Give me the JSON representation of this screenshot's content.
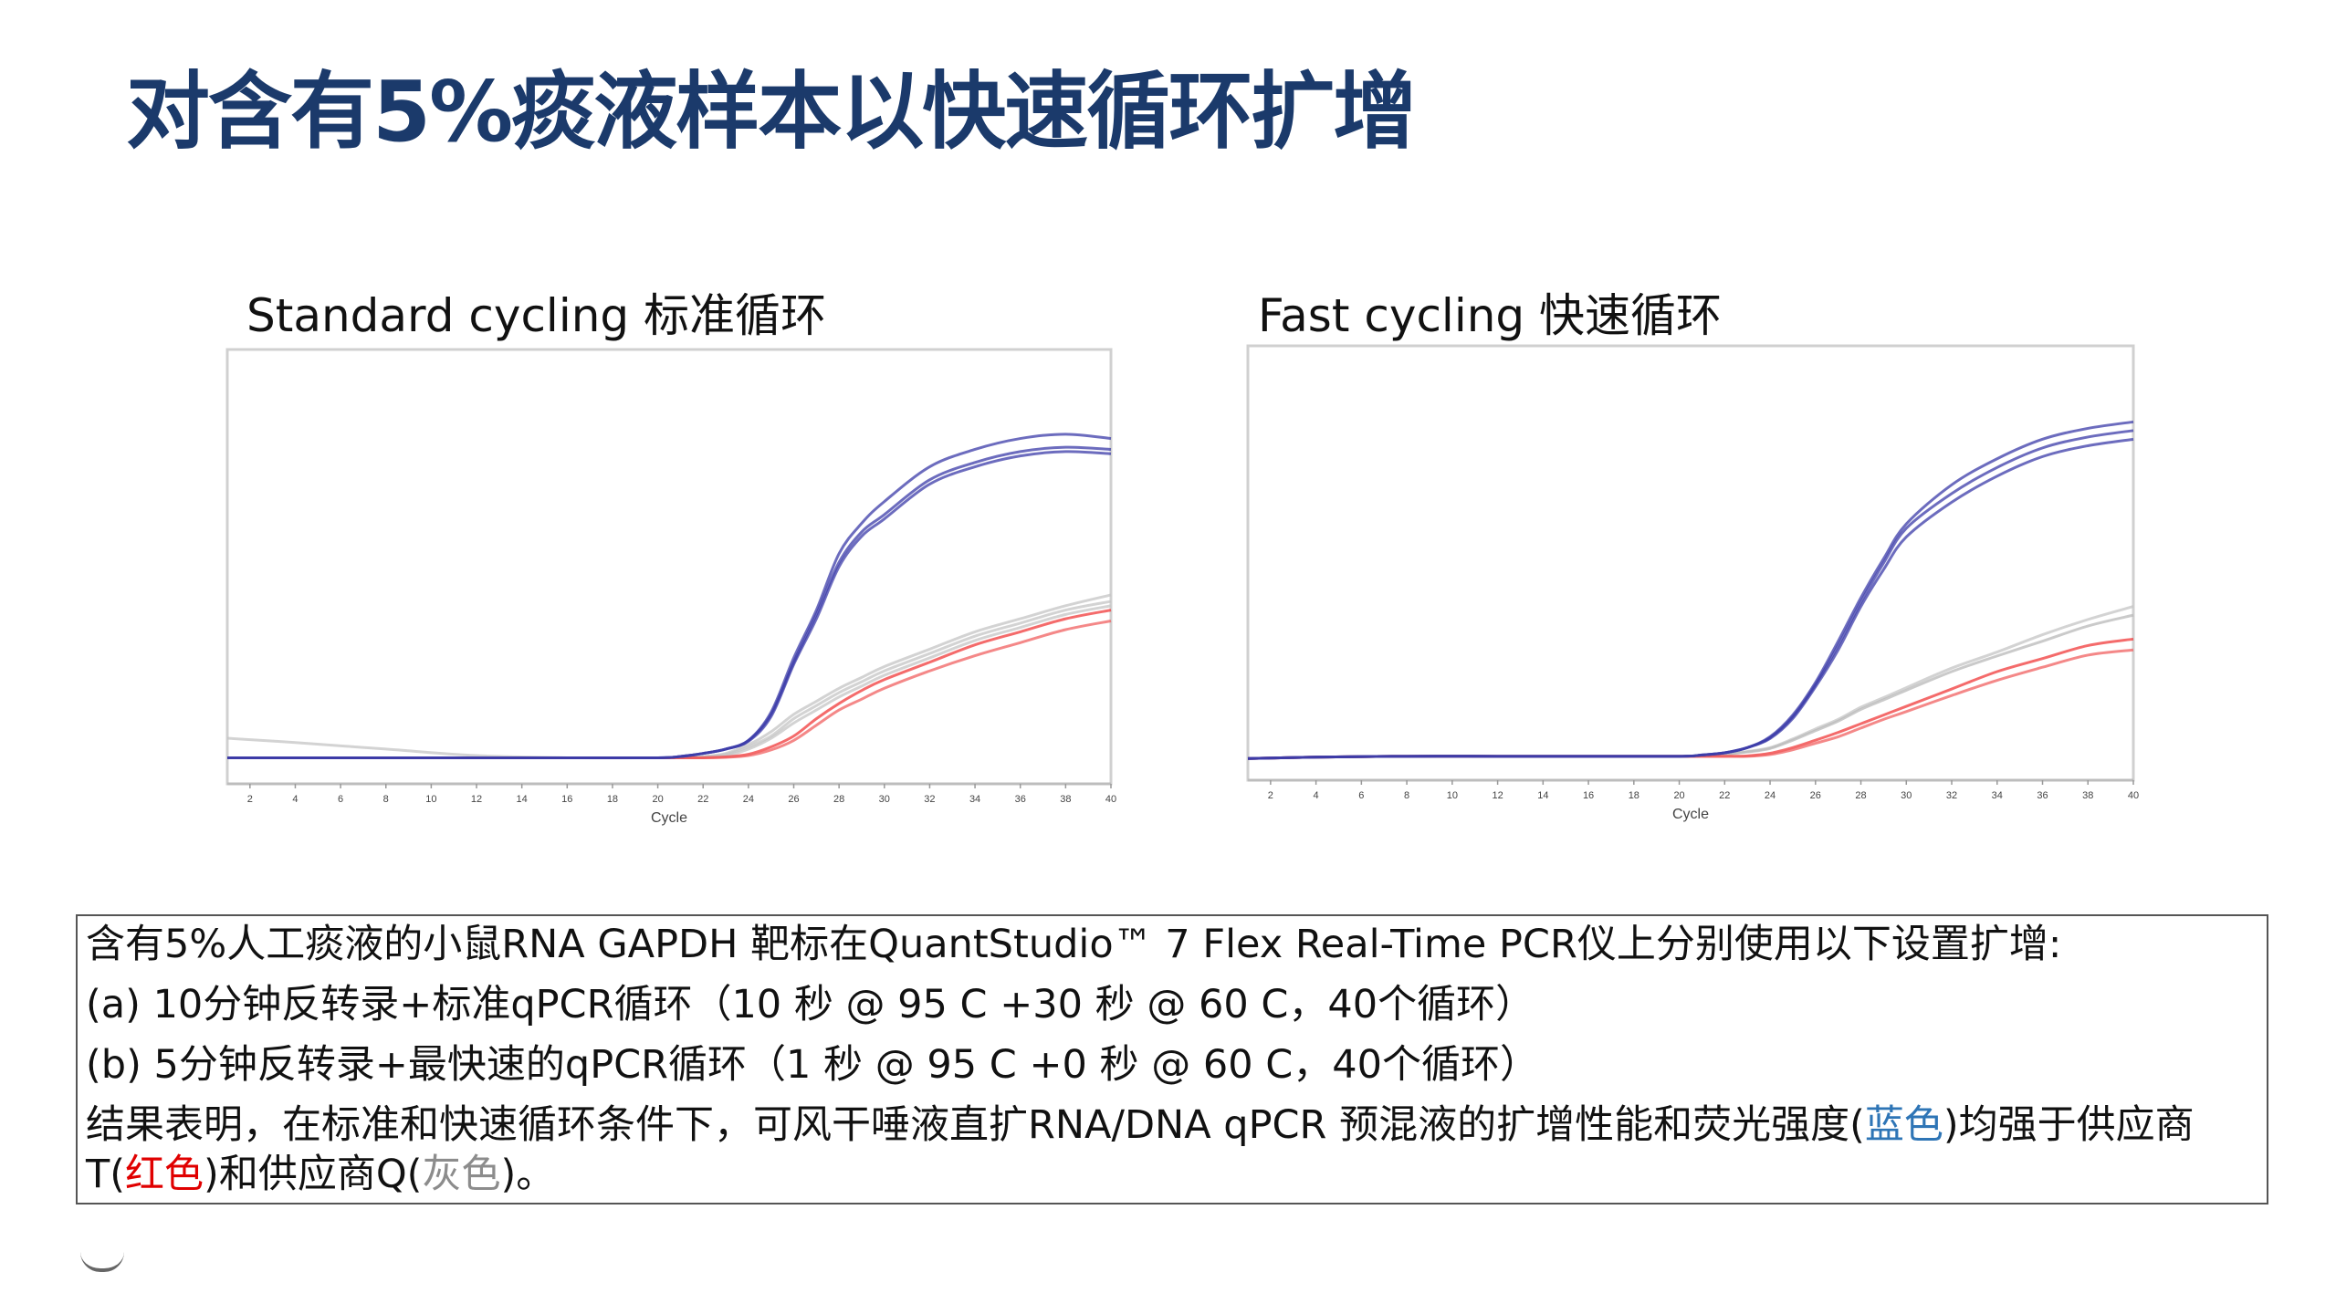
{
  "title": "对含有5%痰液样本以快速循环扩增",
  "charts": [
    {
      "title": "Standard cycling 标准循环"
    },
    {
      "title": "Fast cycling 快速循环"
    }
  ],
  "chart_data": [
    {
      "type": "line",
      "title": "Standard cycling 标准循环",
      "xlabel": "Cycle",
      "ylabel": "",
      "xlim": [
        1,
        40
      ],
      "ylim": [
        0,
        100
      ],
      "xticks": [
        2,
        4,
        6,
        8,
        10,
        12,
        14,
        16,
        18,
        20,
        22,
        24,
        26,
        28,
        30,
        32,
        34,
        36,
        38,
        40
      ],
      "grid": false,
      "x": [
        1,
        4,
        8,
        12,
        16,
        20,
        21,
        22,
        23,
        24,
        25,
        26,
        27,
        28,
        29,
        30,
        32,
        34,
        36,
        38,
        40
      ],
      "series": [
        {
          "color": "#c4c4c4",
          "values": [
            10.5,
            9.5,
            8,
            6.5,
            6,
            6,
            6,
            6.3,
            7,
            9,
            12,
            16,
            19,
            22,
            24.5,
            27,
            31,
            35,
            38,
            41,
            43.5
          ]
        },
        {
          "color": "#c4c4c4",
          "values": [
            6,
            6,
            6,
            6,
            6,
            6,
            6,
            6.2,
            6.8,
            8.5,
            11,
            15,
            18,
            21,
            23.5,
            26,
            30,
            34,
            37,
            40,
            42
          ]
        },
        {
          "color": "#c4c4c4",
          "values": [
            6,
            6,
            6,
            6,
            6,
            6,
            6,
            6.1,
            6.5,
            8,
            10.5,
            14,
            17,
            20,
            22.5,
            25,
            29,
            33,
            36,
            39,
            41
          ]
        },
        {
          "color": "#f03a3a",
          "values": [
            6,
            6,
            6,
            6,
            6,
            6,
            6,
            6,
            6.2,
            6.8,
            8.5,
            11,
            15,
            18.5,
            21.5,
            24,
            28,
            32,
            35,
            38,
            40
          ]
        },
        {
          "color": "#f06060",
          "values": [
            6,
            6,
            6,
            6,
            6,
            6,
            6,
            6,
            6.1,
            6.5,
            7.8,
            10,
            13.5,
            17,
            19.5,
            22,
            26,
            29.5,
            32.5,
            35.5,
            37.5
          ]
        },
        {
          "color": "#3b3ba8",
          "values": [
            6,
            6,
            6,
            6,
            6,
            6,
            6.3,
            7,
            8,
            10,
            16.5,
            29,
            40,
            53,
            60,
            65,
            73,
            77,
            79.5,
            80.5,
            79.5
          ]
        },
        {
          "color": "#3b3ba8",
          "values": [
            6,
            6,
            6,
            6,
            6,
            6,
            6.3,
            7,
            8,
            10,
            16,
            28,
            39,
            51,
            58,
            62,
            70,
            74,
            76.5,
            77.5,
            77
          ]
        },
        {
          "color": "#3b3ba8",
          "values": [
            6,
            6,
            6,
            6,
            6,
            6,
            6.3,
            7,
            8,
            9.8,
            15.5,
            27.5,
            38,
            50,
            57,
            61,
            69,
            73,
            75.5,
            76.5,
            76
          ]
        }
      ]
    },
    {
      "type": "line",
      "title": "Fast cycling 快速循环",
      "xlabel": "Cycle",
      "ylabel": "",
      "xlim": [
        1,
        40
      ],
      "ylim": [
        0,
        100
      ],
      "xticks": [
        2,
        4,
        6,
        8,
        10,
        12,
        14,
        16,
        18,
        20,
        22,
        24,
        26,
        28,
        30,
        32,
        34,
        36,
        38,
        40
      ],
      "grid": false,
      "x": [
        1,
        4,
        8,
        12,
        16,
        20,
        21,
        22,
        23,
        24,
        25,
        26,
        27,
        28,
        29,
        30,
        32,
        34,
        36,
        38,
        40
      ],
      "series": [
        {
          "color": "#c4c4c4",
          "values": [
            5,
            5.3,
            5.5,
            5.5,
            5.5,
            5.5,
            5.6,
            6,
            6.6,
            7.5,
            9.5,
            11.8,
            14,
            16.8,
            19,
            21.3,
            25.8,
            29.5,
            33.5,
            37,
            40
          ]
        },
        {
          "color": "#b8b8b8",
          "values": [
            5,
            5.3,
            5.5,
            5.5,
            5.5,
            5.5,
            5.6,
            6,
            6.5,
            7.3,
            9.2,
            11.4,
            13.6,
            16.3,
            18.5,
            20.7,
            25,
            28.6,
            32,
            35.5,
            38
          ]
        },
        {
          "color": "#f03a3a",
          "values": [
            5,
            5.3,
            5.5,
            5.5,
            5.5,
            5.5,
            5.5,
            5.5,
            5.6,
            6.2,
            7.5,
            9.2,
            11,
            13,
            15,
            17,
            21,
            25,
            28,
            31,
            32.5
          ]
        },
        {
          "color": "#f06060",
          "values": [
            5,
            5.3,
            5.5,
            5.5,
            5.5,
            5.5,
            5.5,
            5.5,
            5.5,
            5.9,
            7,
            8.5,
            10,
            12,
            14,
            15.8,
            19.5,
            23,
            26,
            28.8,
            30
          ]
        },
        {
          "color": "#3b3ba8",
          "values": [
            5,
            5.3,
            5.5,
            5.5,
            5.5,
            5.5,
            5.8,
            6.3,
            7.5,
            10,
            15,
            22.5,
            32,
            42,
            51,
            59,
            68,
            74,
            78.5,
            81,
            82.5
          ]
        },
        {
          "color": "#3b3ba8",
          "values": [
            5,
            5.3,
            5.5,
            5.5,
            5.5,
            5.5,
            5.8,
            6.3,
            7.5,
            9.8,
            14.6,
            22,
            31,
            41,
            50,
            58,
            66,
            72,
            76.5,
            79,
            80.5
          ]
        },
        {
          "color": "#3b3ba8",
          "values": [
            5,
            5.3,
            5.5,
            5.5,
            5.5,
            5.5,
            5.8,
            6.3,
            7.5,
            9.6,
            14.2,
            21.5,
            30,
            40,
            48.5,
            56,
            64,
            70,
            74.5,
            77,
            78.5
          ]
        }
      ]
    }
  ],
  "caption": {
    "line1": "含有5%人工痰液的小鼠RNA GAPDH 靶标在QuantStudio™ 7 Flex Real-Time PCR仪上分别使用以下设置扩增:",
    "line2": "(a) 10分钟反转录+标准qPCR循环（10 秒 @ 95 C +30 秒 @ 60 C，40个循环）",
    "line3": "(b) 5分钟反转录+最快速的qPCR循环（1 秒 @ 95 C +0 秒 @ 60 C，40个循环）",
    "line4_a": "结果表明，在标准和快速循环条件下，可风干唾液直扩RNA/DNA qPCR 预混液的扩增性能和荧光强度(",
    "line4_blue": "蓝色",
    "line4_b": ")均强于供应商",
    "line5_a": "T(",
    "line5_red": "红色",
    "line5_b": ")和供应商Q(",
    "line5_gray": "灰色",
    "line5_c": ")。",
    "colors": {
      "blue": "#2e75b6",
      "red": "#e00000",
      "gray": "#8c8c8c"
    }
  }
}
